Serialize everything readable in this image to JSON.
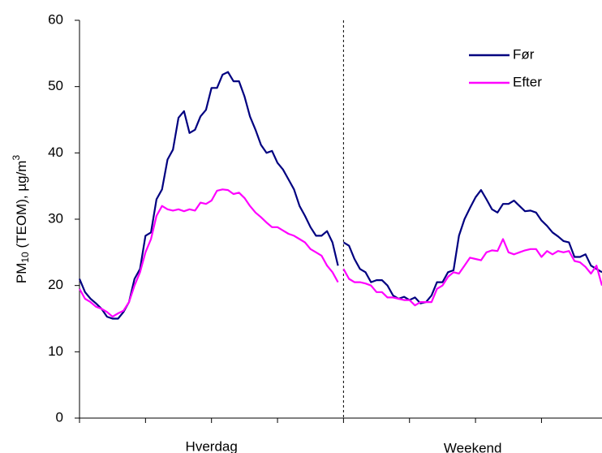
{
  "chart_data": {
    "type": "line",
    "ylabel": {
      "main": "PM",
      "sub": "10",
      "rest": " (TEOM), µg/m",
      "sup": "3"
    },
    "categories": [
      "Hverdag",
      "Weekend"
    ],
    "separator": 24,
    "xlim": [
      0,
      47.5
    ],
    "xticks": [
      0,
      6,
      12,
      18,
      24,
      30,
      36,
      42
    ],
    "ylim": [
      0,
      60
    ],
    "yticks": [
      0,
      10,
      20,
      30,
      40,
      50,
      60
    ],
    "legend": "upper right",
    "x": [
      0,
      0.5,
      1,
      1.5,
      2,
      2.5,
      3,
      3.5,
      4,
      4.5,
      5,
      5.5,
      6,
      6.5,
      7,
      7.5,
      8,
      8.5,
      9,
      9.5,
      10,
      10.5,
      11,
      11.5,
      12,
      12.5,
      13,
      13.5,
      14,
      14.5,
      15,
      15.5,
      16,
      16.5,
      17,
      17.5,
      18,
      18.5,
      19,
      19.5,
      20,
      20.5,
      21,
      21.5,
      22,
      22.5,
      23,
      23.5,
      24,
      24.5,
      25,
      25.5,
      26,
      26.5,
      27,
      27.5,
      28,
      28.5,
      29,
      29.5,
      30,
      30.5,
      31,
      31.5,
      32,
      32.5,
      33,
      33.5,
      34,
      34.5,
      35,
      35.5,
      36,
      36.5,
      37,
      37.5,
      38,
      38.5,
      39,
      39.5,
      40,
      40.5,
      41,
      41.5,
      42,
      42.5,
      43,
      43.5,
      44,
      44.5,
      45,
      45.5,
      46,
      46.5,
      47,
      47.5
    ],
    "series": [
      {
        "name": "Før",
        "color": "#000080",
        "values": [
          21,
          19,
          18,
          17.3,
          16.5,
          15.3,
          15,
          15,
          16,
          17.5,
          21,
          22.5,
          27.5,
          28,
          33,
          34.5,
          39,
          40.5,
          45.3,
          46.3,
          43,
          43.5,
          45.5,
          46.5,
          49.8,
          49.8,
          51.8,
          52.2,
          50.8,
          50.8,
          48.5,
          45.5,
          43.5,
          41.2,
          40,
          40.3,
          38.5,
          37.5,
          36,
          34.5,
          32,
          30.5,
          28.8,
          27.5,
          27.5,
          28.2,
          26.5,
          23,
          26.5,
          26,
          24,
          22.5,
          22,
          20.5,
          20.8,
          20.8,
          20,
          18.5,
          18,
          18.3,
          17.8,
          18.2,
          17.3,
          17.5,
          18.5,
          20.5,
          20.5,
          22,
          22.3,
          27.5,
          30,
          31.7,
          33.3,
          34.4,
          33,
          31.5,
          31,
          32.3,
          32.3,
          32.8,
          32,
          31.2,
          31.3,
          31,
          29.8,
          29,
          28,
          27.4,
          26.7,
          26.5,
          24.3,
          24.3,
          24.7,
          23,
          22.5,
          22
        ]
      },
      {
        "name": "Efter",
        "color": "#ff00ff",
        "values": [
          19.5,
          18,
          17.5,
          16.8,
          16.5,
          16,
          15.3,
          15.8,
          16.2,
          17.5,
          20,
          22,
          25,
          27,
          30.5,
          32,
          31.5,
          31.3,
          31.5,
          31.2,
          31.5,
          31.3,
          32.5,
          32.3,
          32.8,
          34.3,
          34.5,
          34.4,
          33.8,
          34,
          33.2,
          32,
          31,
          30.3,
          29.5,
          28.8,
          28.8,
          28.3,
          27.8,
          27.5,
          27,
          26.5,
          25.5,
          25,
          24.5,
          23,
          22,
          20.5,
          22.5,
          21,
          20.5,
          20.5,
          20.3,
          20,
          19,
          19,
          18.2,
          18.2,
          18,
          17.8,
          17.8,
          17,
          17.5,
          17.5,
          17.5,
          19.5,
          20,
          21.3,
          22,
          21.8,
          23,
          24.2,
          24,
          23.8,
          25,
          25.3,
          25.2,
          27,
          25,
          24.7,
          25,
          25.3,
          25.5,
          25.5,
          24.3,
          25.2,
          24.7,
          25.2,
          25,
          25.2,
          23.7,
          23.5,
          22.8,
          21.8,
          23,
          20
        ]
      }
    ]
  }
}
